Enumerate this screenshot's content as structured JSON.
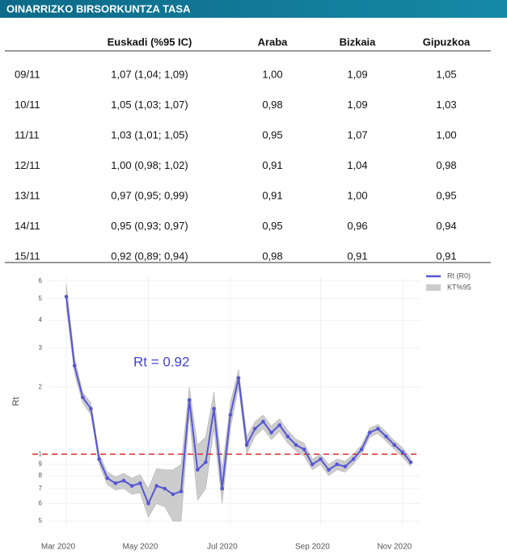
{
  "header": {
    "title": "OINARRIZKO BIRSORKUNTZA TASA"
  },
  "table": {
    "columns": [
      "",
      "Euskadi (%95 IC)",
      "Araba",
      "Bizkaia",
      "Gipuzkoa"
    ],
    "rows": [
      [
        "09/11",
        "1,07 (1,04; 1,09)",
        "1,00",
        "1,09",
        "1,05"
      ],
      [
        "10/11",
        "1,05 (1,03; 1,07)",
        "0,98",
        "1,09",
        "1,03"
      ],
      [
        "11/11",
        "1,03 (1,01; 1,05)",
        "0,95",
        "1,07",
        "1,00"
      ],
      [
        "12/11",
        "1,00 (0,98; 1,02)",
        "0,91",
        "1,04",
        "0,98"
      ],
      [
        "13/11",
        "0,97 (0,95; 0,99)",
        "0,91",
        "1,00",
        "0,95"
      ],
      [
        "14/11",
        "0,95 (0,93; 0,97)",
        "0,95",
        "0,96",
        "0,94"
      ],
      [
        "15/11",
        "0,92 (0,89; 0,94)",
        "0,98",
        "0,91",
        "0,91"
      ]
    ]
  },
  "chart_data": {
    "type": "line",
    "ylabel": "Rt",
    "annotation": "Rt =  0.92",
    "log_y": true,
    "ylim": [
      0.48,
      6.3
    ],
    "yticks": [
      {
        "value": 0.5,
        "label": "5"
      },
      {
        "value": 0.6,
        "label": "6"
      },
      {
        "value": 0.7,
        "label": "7"
      },
      {
        "value": 0.8,
        "label": "8"
      },
      {
        "value": 0.9,
        "label": "9"
      },
      1,
      2,
      3,
      4,
      5,
      6
    ],
    "reference_line": {
      "value": 1,
      "color": "#e03030"
    },
    "categories": [
      "Mar 2020",
      null,
      null,
      null,
      null,
      null,
      null,
      null,
      null,
      null,
      "May 2020",
      null,
      null,
      null,
      null,
      null,
      null,
      null,
      null,
      null,
      "Jul 2020",
      null,
      null,
      null,
      null,
      null,
      null,
      null,
      null,
      null,
      null,
      "Sep 2020",
      null,
      null,
      null,
      null,
      null,
      null,
      null,
      null,
      null,
      "Nov 2020",
      null
    ],
    "series": [
      {
        "name": "Rt (R0)",
        "color": "#5656d6",
        "values": [
          5.1,
          2.5,
          1.8,
          1.6,
          0.95,
          0.78,
          0.74,
          0.76,
          0.72,
          0.74,
          0.6,
          0.72,
          0.7,
          0.66,
          0.68,
          1.75,
          0.85,
          0.92,
          1.6,
          0.7,
          1.5,
          2.2,
          1.1,
          1.3,
          1.4,
          1.25,
          1.35,
          1.2,
          1.1,
          1.05,
          0.9,
          0.95,
          0.85,
          0.9,
          0.88,
          0.95,
          1.05,
          1.25,
          1.3,
          1.2,
          1.1,
          1.02,
          0.92
        ]
      },
      {
        "name": "KT%95",
        "color": "#cccccc",
        "lower": [
          4.6,
          2.3,
          1.7,
          1.5,
          0.9,
          0.73,
          0.69,
          0.7,
          0.66,
          0.67,
          0.52,
          0.6,
          0.58,
          0.5,
          0.5,
          1.5,
          0.62,
          0.7,
          1.3,
          0.6,
          1.3,
          2.0,
          1.0,
          1.2,
          1.3,
          1.16,
          1.26,
          1.12,
          1.03,
          0.98,
          0.85,
          0.9,
          0.8,
          0.85,
          0.83,
          0.9,
          1.0,
          1.19,
          1.24,
          1.14,
          1.05,
          0.97,
          0.88
        ],
        "upper": [
          5.8,
          2.7,
          1.9,
          1.7,
          1.0,
          0.83,
          0.79,
          0.82,
          0.78,
          0.81,
          0.7,
          0.86,
          0.85,
          0.85,
          0.9,
          2.0,
          1.1,
          1.2,
          1.9,
          0.85,
          1.7,
          2.4,
          1.2,
          1.4,
          1.5,
          1.34,
          1.44,
          1.28,
          1.17,
          1.12,
          0.95,
          1.0,
          0.9,
          0.95,
          0.93,
          1.0,
          1.1,
          1.31,
          1.36,
          1.26,
          1.15,
          1.07,
          0.96
        ]
      }
    ]
  }
}
